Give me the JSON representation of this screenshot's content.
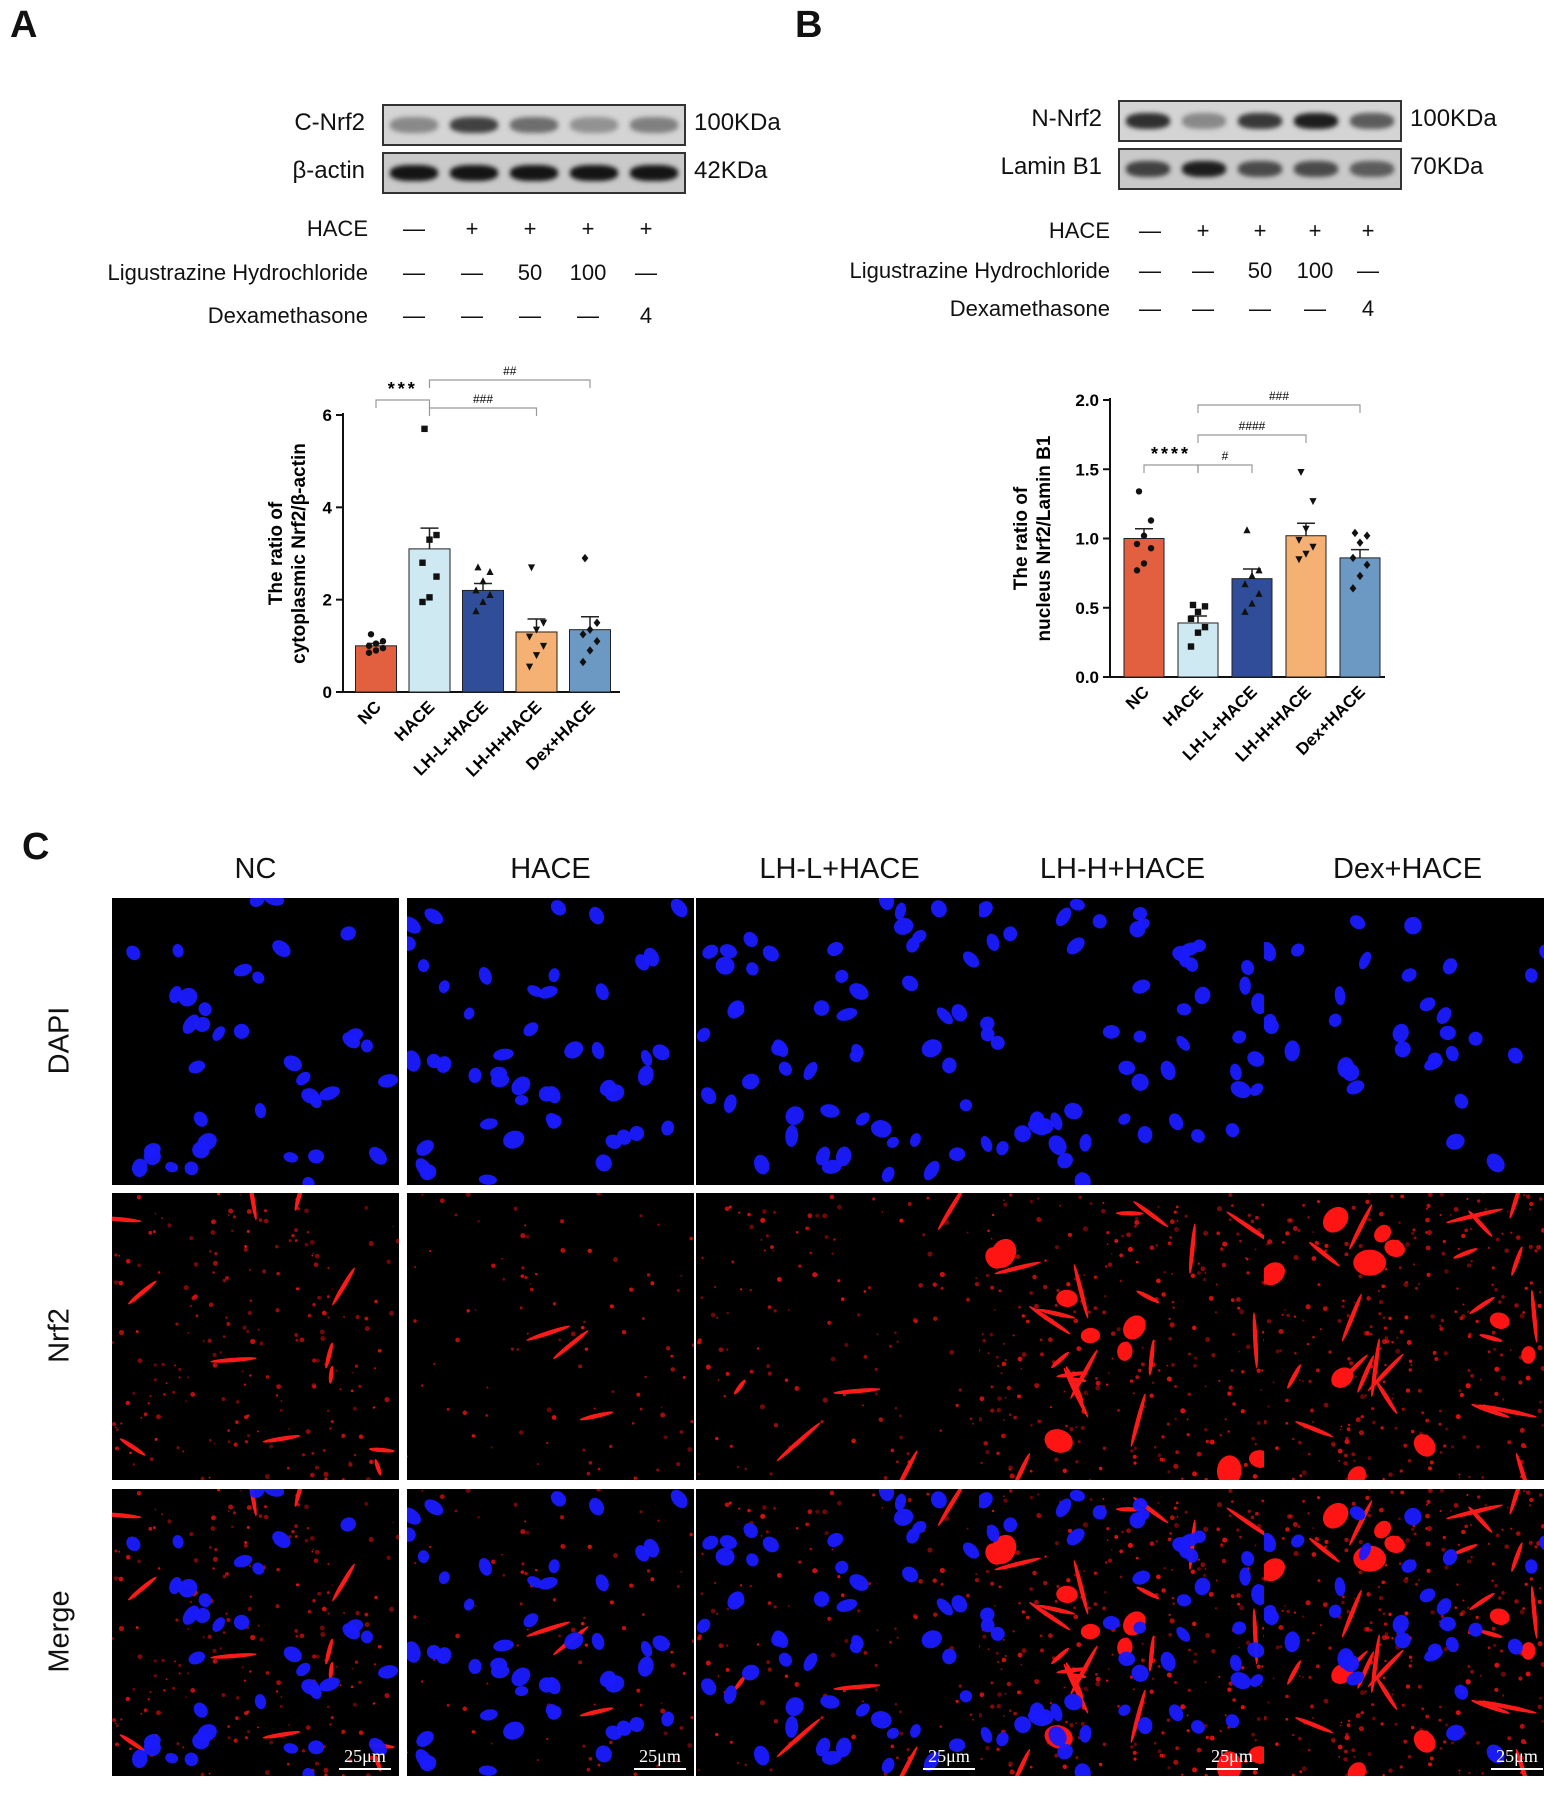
{
  "panels": {
    "A": {
      "letter": "A",
      "blot_rows": [
        {
          "label": "C-Nrf2",
          "size": "100KDa",
          "intensities": [
            0.35,
            0.75,
            0.5,
            0.3,
            0.4
          ]
        },
        {
          "label": "β-actin",
          "size": "42KDa",
          "intensities": [
            1.0,
            1.0,
            1.0,
            1.0,
            1.0
          ]
        }
      ],
      "treatments": [
        {
          "label": "HACE",
          "values": [
            "—",
            "+",
            "+",
            "+",
            "+"
          ]
        },
        {
          "label": "Ligustrazine Hydrochloride",
          "values": [
            "—",
            "—",
            "50",
            "100",
            "—"
          ]
        },
        {
          "label": "Dexamethasone",
          "values": [
            "—",
            "—",
            "—",
            "—",
            "4"
          ]
        }
      ]
    },
    "B": {
      "letter": "B",
      "blot_rows": [
        {
          "label": "N-Nrf2",
          "size": "100KDa",
          "intensities": [
            0.85,
            0.35,
            0.8,
            0.95,
            0.6
          ]
        },
        {
          "label": "Lamin B1",
          "size": "70KDa",
          "intensities": [
            0.75,
            0.95,
            0.7,
            0.7,
            0.6
          ]
        }
      ],
      "treatments": [
        {
          "label": "HACE",
          "values": [
            "—",
            "+",
            "+",
            "+",
            "+"
          ]
        },
        {
          "label": "Ligustrazine Hydrochloride",
          "values": [
            "—",
            "—",
            "50",
            "100",
            "—"
          ]
        },
        {
          "label": "Dexamethasone",
          "values": [
            "—",
            "—",
            "—",
            "—",
            "4"
          ]
        }
      ]
    },
    "C": {
      "letter": "C",
      "columns": [
        "NC",
        "HACE",
        "LH-L+HACE",
        "LH-H+HACE",
        "Dex+HACE"
      ],
      "rows": [
        "DAPI",
        "Nrf2",
        "Merge"
      ],
      "scale_bar": "25μm",
      "nrf2_intensity": [
        0.55,
        0.12,
        0.22,
        0.85,
        0.95
      ]
    }
  },
  "chart_data": [
    {
      "type": "bar",
      "panel": "A",
      "categories": [
        "NC",
        "HACE",
        "LH-L+HACE",
        "LH-H+HACE",
        "Dex+HACE"
      ],
      "values": [
        1.0,
        3.1,
        2.2,
        1.3,
        1.35
      ],
      "sem": [
        0.05,
        0.45,
        0.15,
        0.28,
        0.28
      ],
      "points": [
        [
          0.85,
          0.9,
          0.95,
          1.0,
          1.05,
          1.1,
          1.25
        ],
        [
          1.95,
          2.05,
          2.5,
          2.8,
          3.3,
          3.4,
          5.7
        ],
        [
          1.75,
          1.95,
          2.1,
          2.2,
          2.4,
          2.6,
          2.7
        ],
        [
          0.55,
          0.8,
          1.0,
          1.2,
          1.35,
          1.5,
          2.7
        ],
        [
          0.65,
          0.9,
          1.1,
          1.25,
          1.35,
          1.5,
          2.9
        ]
      ],
      "colors": [
        "#e2603f",
        "#cfe9f2",
        "#2f4d98",
        "#f4b173",
        "#6c98c4"
      ],
      "ylabel_line1": "The ratio of",
      "ylabel_line2": "cytoplasmic Nrf2/β-actin",
      "ylim": [
        0,
        6
      ],
      "yticks": [
        0,
        2,
        4,
        6
      ],
      "annotations": [
        {
          "from": 0,
          "to": 1,
          "text": "***"
        },
        {
          "from": 1,
          "to": 3,
          "text": "###"
        },
        {
          "from": 1,
          "to": 4,
          "text": "##"
        }
      ]
    },
    {
      "type": "bar",
      "panel": "B",
      "categories": [
        "NC",
        "HACE",
        "LH-L+HACE",
        "LH-H+HACE",
        "Dex+HACE"
      ],
      "values": [
        1.0,
        0.39,
        0.71,
        1.02,
        0.86
      ],
      "sem": [
        0.07,
        0.05,
        0.07,
        0.09,
        0.06
      ],
      "points": [
        [
          0.77,
          0.82,
          0.93,
          0.96,
          1.02,
          1.13,
          1.34
        ],
        [
          0.22,
          0.32,
          0.36,
          0.42,
          0.47,
          0.51,
          0.52
        ],
        [
          0.47,
          0.53,
          0.6,
          0.67,
          0.73,
          0.77,
          1.06
        ],
        [
          0.85,
          0.89,
          0.94,
          0.99,
          1.07,
          1.27,
          1.48
        ],
        [
          0.64,
          0.73,
          0.81,
          0.86,
          0.97,
          1.02,
          1.04
        ]
      ],
      "colors": [
        "#e2603f",
        "#cfe9f2",
        "#2f4d98",
        "#f4b173",
        "#6c98c4"
      ],
      "ylabel_line1": "The ratio of",
      "ylabel_line2": "nucleus Nrf2/Lamin B1",
      "ylim": [
        0,
        2.0
      ],
      "yticks": [
        0.0,
        0.5,
        1.0,
        1.5,
        2.0
      ],
      "annotations": [
        {
          "from": 0,
          "to": 1,
          "text": "****"
        },
        {
          "from": 1,
          "to": 2,
          "text": "#"
        },
        {
          "from": 1,
          "to": 3,
          "text": "####"
        },
        {
          "from": 1,
          "to": 4,
          "text": "###"
        }
      ]
    }
  ]
}
